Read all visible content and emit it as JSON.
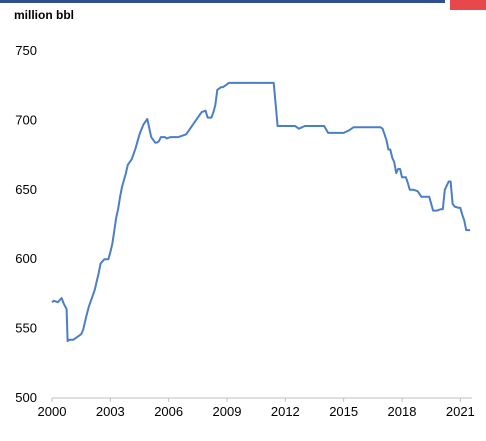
{
  "colors": {
    "series": "#4a7fc7",
    "top_bar": "#2f4f8f",
    "top_red": "#e8474c",
    "axis": "#bfbfbf",
    "text": "#000000"
  },
  "unit_label": "million bbl",
  "chart_data": {
    "type": "line",
    "title": "",
    "xlabel": "",
    "ylabel": "million bbl",
    "xlim": [
      2000,
      2021.6
    ],
    "ylim": [
      500,
      750
    ],
    "x_ticks": [
      "2000",
      "2003",
      "2006",
      "2009",
      "2012",
      "2015",
      "2018",
      "2021"
    ],
    "y_ticks": [
      "500",
      "550",
      "600",
      "650",
      "700",
      "750"
    ],
    "grid": "horizontal",
    "legend": "none",
    "series": [
      {
        "x": [
          2000.0,
          2000.1,
          2000.3,
          2000.5,
          2000.6,
          2000.75,
          2000.8,
          2000.9,
          2001.1,
          2001.3,
          2001.5,
          2001.6,
          2001.75,
          2001.9,
          2002.0,
          2002.2,
          2002.3,
          2002.4,
          2002.5,
          2002.7,
          2002.8,
          2002.9,
          2003.0,
          2003.1,
          2003.2,
          2003.3,
          2003.4,
          2003.5,
          2003.6,
          2003.8,
          2003.9,
          2004.1,
          2004.3,
          2004.5,
          2004.7,
          2004.9,
          2005.1,
          2005.3,
          2005.4,
          2005.5,
          2005.6,
          2005.8,
          2005.9,
          2006.1,
          2006.2,
          2006.3,
          2006.5,
          2006.7,
          2006.9,
          2007.1,
          2007.3,
          2007.5,
          2007.7,
          2007.9,
          2008.0,
          2008.2,
          2008.3,
          2008.4,
          2008.5,
          2008.7,
          2008.8,
          2008.9,
          2009.1,
          2009.2,
          2009.3,
          2009.4,
          2009.5,
          2009.7,
          2009.9,
          2010.2,
          2010.5,
          2010.8,
          2011.1,
          2011.4,
          2011.5,
          2011.6,
          2011.7,
          2012.0,
          2012.3,
          2012.5,
          2012.7,
          2013.0,
          2013.3,
          2013.6,
          2013.8,
          2014.0,
          2014.2,
          2014.5,
          2014.7,
          2015.0,
          2015.3,
          2015.5,
          2015.7,
          2016.0,
          2016.3,
          2016.6,
          2016.9,
          2017.0,
          2017.1,
          2017.2,
          2017.3,
          2017.4,
          2017.5,
          2017.6,
          2017.7,
          2017.8,
          2017.9,
          2018.0,
          2018.1,
          2018.2,
          2018.3,
          2018.4,
          2018.6,
          2018.8,
          2019.0,
          2019.2,
          2019.4,
          2019.6,
          2019.8,
          2020.0,
          2020.1,
          2020.2,
          2020.4,
          2020.5,
          2020.6,
          2020.7,
          2020.9,
          2021.0,
          2021.1,
          2021.2,
          2021.3,
          2021.5
        ],
        "y": [
          569,
          570,
          569,
          572,
          568,
          564,
          541,
          542,
          542,
          544,
          546,
          549,
          558,
          566,
          570,
          578,
          584,
          590,
          597,
          600,
          600,
          600,
          605,
          611,
          620,
          630,
          636,
          645,
          652,
          662,
          668,
          672,
          680,
          690,
          697,
          701,
          688,
          684,
          684,
          685,
          688,
          688,
          687,
          688,
          688,
          688,
          688,
          689,
          690,
          694,
          698,
          702,
          706,
          707,
          702,
          702,
          706,
          711,
          722,
          724,
          724,
          725,
          727,
          727,
          727,
          727,
          727,
          727,
          727,
          727,
          727,
          727,
          727,
          727,
          712,
          696,
          696,
          696,
          696,
          696,
          694,
          696,
          696,
          696,
          696,
          696,
          691,
          691,
          691,
          691,
          693,
          695,
          695,
          695,
          695,
          695,
          695,
          694,
          690,
          686,
          679,
          679,
          673,
          670,
          662,
          665,
          665,
          659,
          659,
          659,
          655,
          650,
          650,
          649,
          645,
          645,
          645,
          635,
          635,
          636,
          636,
          650,
          656,
          656,
          640,
          638,
          637,
          637,
          632,
          628,
          621,
          621
        ]
      }
    ]
  }
}
